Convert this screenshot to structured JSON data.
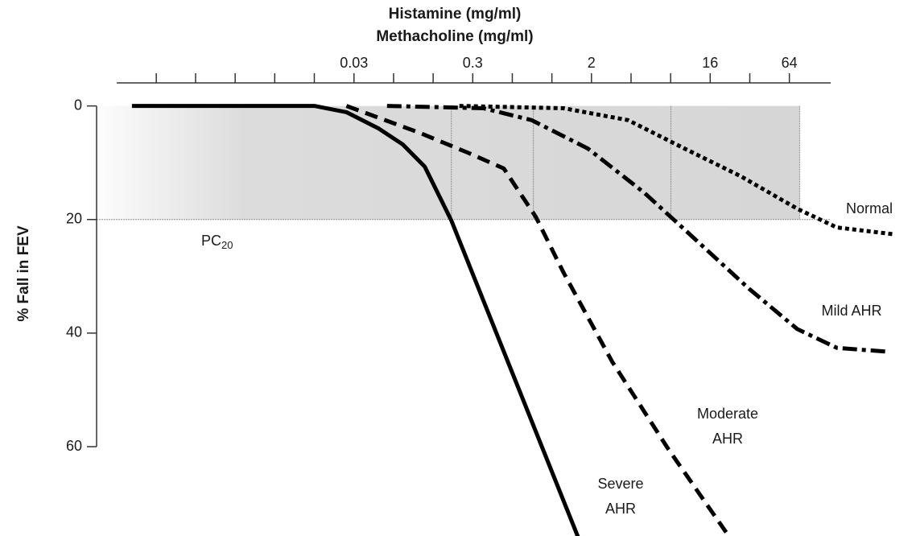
{
  "chart_data": {
    "type": "line",
    "title": [
      "Histamine (mg/ml)",
      "Methacholine (mg/ml)"
    ],
    "y_label": "% Fall in FEV",
    "pc20_label": {
      "text": "PC",
      "subscript": "20"
    },
    "pc20_level": 20,
    "pc20_lines": [
      0.172,
      0.723,
      8.04,
      76.6
    ],
    "xscale": "log",
    "xlim": [
      0.00049,
      132
    ],
    "xticks": [
      {
        "value": 0.03125,
        "label": "0.03"
      },
      {
        "value": 0.25,
        "label": "0.3"
      },
      2,
      16,
      64
    ],
    "xminor_ticks": [
      0.00098,
      0.00195,
      0.0039,
      0.0078,
      0.0156,
      0.0625,
      0.125,
      0.5,
      1,
      4,
      8,
      32
    ],
    "ylim": [
      60,
      -2.5
    ],
    "yticks": [
      0,
      20,
      40,
      60
    ],
    "series": [
      {
        "name": [
          "Severe",
          "AHR"
        ],
        "color": "#000000",
        "line_style": "solid",
        "x": [
          0.00064,
          0.0156,
          0.0274,
          0.0484,
          0.0736,
          0.108,
          0.172,
          1.76
        ],
        "values": [
          0,
          0,
          1.1,
          4,
          6.8,
          10.7,
          20.2,
          78.6
        ]
      },
      {
        "name": [
          "Moderate",
          "AHR"
        ],
        "color": "#000000",
        "line_style": "dashed",
        "x": [
          0.0274,
          0.0978,
          0.228,
          0.43,
          0.753,
          1.23,
          2.87,
          7.72,
          23.8
        ],
        "values": [
          0,
          4.7,
          8.2,
          11,
          19.5,
          29.4,
          45,
          60.5,
          76.8
        ]
      },
      {
        "name": [
          "Mild AHR"
        ],
        "color": "#000000",
        "line_style": "dashdot",
        "x": [
          0.0557,
          0.301,
          0.702,
          1.88,
          5.05,
          11.8,
          31.6,
          73.5,
          147,
          370
        ],
        "values": [
          0,
          0.4,
          2.5,
          7.5,
          15.3,
          23.1,
          32.2,
          39.3,
          42.6,
          43.3
        ]
      },
      {
        "name": [
          "Normal"
        ],
        "color": "#000000",
        "line_style": "dotted",
        "x": [
          0.198,
          1.23,
          3.8,
          10.2,
          27.4,
          73.5,
          147,
          400
        ],
        "values": [
          0,
          0.4,
          2.5,
          7.5,
          12.4,
          18.1,
          21.4,
          22.6
        ]
      }
    ]
  }
}
